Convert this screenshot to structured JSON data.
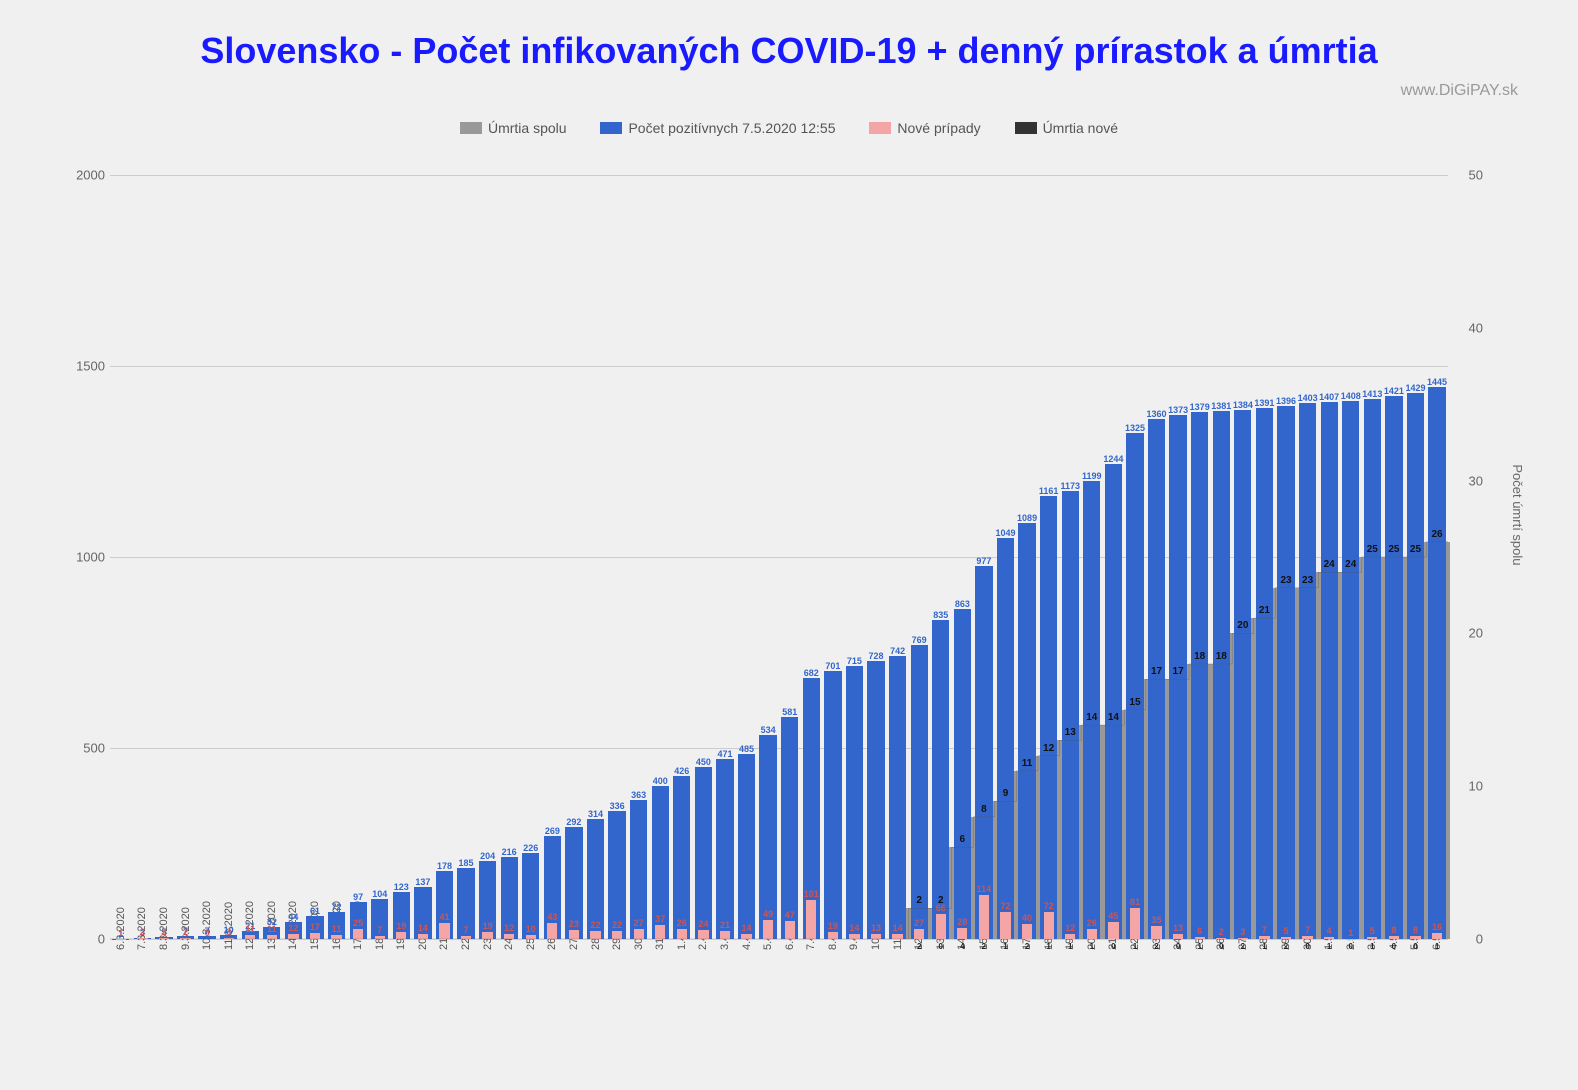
{
  "title": "Slovensko - Počet infikovaných COVID-19 + denný prírastok a úmrtia",
  "subtitle": "www.DiGiPAY.sk",
  "legend": {
    "deaths_total": "Úmrtia spolu",
    "positives": "Počet pozitívnych 7.5.2020 12:55",
    "new_cases": "Nové prípady",
    "deaths_new": "Úmrtia nové"
  },
  "colors": {
    "title": "#1a1aff",
    "positives": "#3366cc",
    "deaths_total": "#999999",
    "new_cases": "#f4a6a6",
    "deaths_new": "#333333",
    "grid": "#cccccc",
    "bg": "#f0f0f0",
    "subtitle": "#999999"
  },
  "y_left": {
    "min": 0,
    "max": 2000,
    "ticks": [
      0,
      500,
      1000,
      1500,
      2000
    ]
  },
  "y_right": {
    "min": 0,
    "max": 50,
    "ticks": [
      0,
      10,
      20,
      30,
      40,
      50
    ],
    "title": "Počet úmrtí spolu"
  },
  "data": [
    {
      "date": "6.3.2020",
      "pos": 1,
      "new": 1,
      "dt": 0,
      "dn": 0
    },
    {
      "date": "7.3.2020",
      "pos": 3,
      "new": 2,
      "dt": 0,
      "dn": 0
    },
    {
      "date": "8.3.2020",
      "pos": 5,
      "new": 2,
      "dt": 0,
      "dn": 0
    },
    {
      "date": "9.3.2020",
      "pos": 7,
      "new": 2,
      "dt": 0,
      "dn": 0
    },
    {
      "date": "10.3.2020",
      "pos": 7,
      "new": 0,
      "dt": 0,
      "dn": 0
    },
    {
      "date": "11.3.2020",
      "pos": 10,
      "new": 3,
      "dt": 0,
      "dn": 0
    },
    {
      "date": "12.3.2020",
      "pos": 21,
      "new": 11,
      "dt": 0,
      "dn": 0
    },
    {
      "date": "13.3.2020",
      "pos": 32,
      "new": 11,
      "dt": 0,
      "dn": 0
    },
    {
      "date": "14.3.2020",
      "pos": 44,
      "new": 12,
      "dt": 0,
      "dn": 0
    },
    {
      "date": "15.3.2020",
      "pos": 61,
      "new": 17,
      "dt": 0,
      "dn": 0
    },
    {
      "date": "16.3.2020",
      "pos": 72,
      "new": 11,
      "dt": 0,
      "dn": 0
    },
    {
      "date": "17.3.2020",
      "pos": 97,
      "new": 25,
      "dt": 0,
      "dn": 0
    },
    {
      "date": "18.3.2020",
      "pos": 104,
      "new": 7,
      "dt": 0,
      "dn": 0
    },
    {
      "date": "19.3.2020",
      "pos": 123,
      "new": 19,
      "dt": 0,
      "dn": 0
    },
    {
      "date": "20.3.2020",
      "pos": 137,
      "new": 14,
      "dt": 0,
      "dn": 0
    },
    {
      "date": "21.3.2020",
      "pos": 178,
      "new": 41,
      "dt": 0,
      "dn": 0
    },
    {
      "date": "22.3.2020",
      "pos": 185,
      "new": 7,
      "dt": 0,
      "dn": 0
    },
    {
      "date": "23.3.2020",
      "pos": 204,
      "new": 19,
      "dt": 0,
      "dn": 0
    },
    {
      "date": "24.3.2020",
      "pos": 216,
      "new": 12,
      "dt": 0,
      "dn": 0
    },
    {
      "date": "25.3.2020",
      "pos": 226,
      "new": 10,
      "dt": 0,
      "dn": 0
    },
    {
      "date": "26.3.2020",
      "pos": 269,
      "new": 43,
      "dt": 0,
      "dn": 0
    },
    {
      "date": "27.3.2020",
      "pos": 292,
      "new": 23,
      "dt": 0,
      "dn": 0
    },
    {
      "date": "28.3.2020",
      "pos": 314,
      "new": 22,
      "dt": 0,
      "dn": 0
    },
    {
      "date": "29.3.2020",
      "pos": 336,
      "new": 22,
      "dt": 0,
      "dn": 0
    },
    {
      "date": "30.3.2020",
      "pos": 363,
      "new": 27,
      "dt": 0,
      "dn": 0
    },
    {
      "date": "31.3.2020",
      "pos": 400,
      "new": 37,
      "dt": 0,
      "dn": 0
    },
    {
      "date": "1.4.2020",
      "pos": 426,
      "new": 26,
      "dt": 0,
      "dn": 0
    },
    {
      "date": "2.4.2020",
      "pos": 450,
      "new": 24,
      "dt": 0,
      "dn": 0
    },
    {
      "date": "3.4.2020",
      "pos": 471,
      "new": 21,
      "dt": 0,
      "dn": 0
    },
    {
      "date": "4.4.2020",
      "pos": 485,
      "new": 14,
      "dt": 0,
      "dn": 0
    },
    {
      "date": "5.4.2020",
      "pos": 534,
      "new": 49,
      "dt": 0,
      "dn": 0
    },
    {
      "date": "6.4.2020",
      "pos": 581,
      "new": 47,
      "dt": 0,
      "dn": 0
    },
    {
      "date": "7.4.2020",
      "pos": 682,
      "new": 101,
      "dt": 0,
      "dn": 0
    },
    {
      "date": "8.4.2020",
      "pos": 701,
      "new": 19,
      "dt": 0,
      "dn": 0
    },
    {
      "date": "9.4.2020",
      "pos": 715,
      "new": 14,
      "dt": 0,
      "dn": 0
    },
    {
      "date": "10.4.2020",
      "pos": 728,
      "new": 13,
      "dt": 0,
      "dn": 0
    },
    {
      "date": "11.4.2020",
      "pos": 742,
      "new": 14,
      "dt": 0,
      "dn": 0
    },
    {
      "date": "12.4.2020",
      "pos": 769,
      "new": 27,
      "dt": 2,
      "dn": 2
    },
    {
      "date": "13.4.2020",
      "pos": 835,
      "new": 66,
      "dt": 2,
      "dn": 0
    },
    {
      "date": "14.4.2020",
      "pos": 863,
      "new": 28,
      "dt": 6,
      "dn": 4
    },
    {
      "date": "15.4.2020",
      "pos": 977,
      "new": 114,
      "dt": 8,
      "dn": 2
    },
    {
      "date": "16.4.2020",
      "pos": 1049,
      "new": 72,
      "dt": 9,
      "dn": 1
    },
    {
      "date": "17.4.2020",
      "pos": 1089,
      "new": 40,
      "dt": 11,
      "dn": 2
    },
    {
      "date": "18.4.2020",
      "pos": 1161,
      "new": 72,
      "dt": 12,
      "dn": 1
    },
    {
      "date": "19.4.2020",
      "pos": 1173,
      "new": 12,
      "dt": 13,
      "dn": 1
    },
    {
      "date": "20.4.2020",
      "pos": 1199,
      "new": 26,
      "dt": 14,
      "dn": 1
    },
    {
      "date": "21.4.2020",
      "pos": 1244,
      "new": 45,
      "dt": 14,
      "dn": 0
    },
    {
      "date": "22.4.2020",
      "pos": 1325,
      "new": 81,
      "dt": 15,
      "dn": 1
    },
    {
      "date": "23.4.2020",
      "pos": 1360,
      "new": 35,
      "dt": 17,
      "dn": 2
    },
    {
      "date": "24.4.2020",
      "pos": 1373,
      "new": 13,
      "dt": 17,
      "dn": 0
    },
    {
      "date": "25.4.2020",
      "pos": 1379,
      "new": 6,
      "dt": 18,
      "dn": 1
    },
    {
      "date": "26.4.2020",
      "pos": 1381,
      "new": 2,
      "dt": 18,
      "dn": 0
    },
    {
      "date": "27.4.2020",
      "pos": 1384,
      "new": 3,
      "dt": 20,
      "dn": 2
    },
    {
      "date": "28.4.2020",
      "pos": 1391,
      "new": 7,
      "dt": 21,
      "dn": 1
    },
    {
      "date": "29.4.2020",
      "pos": 1396,
      "new": 5,
      "dt": 23,
      "dn": 2
    },
    {
      "date": "30.4.2020",
      "pos": 1403,
      "new": 7,
      "dt": 23,
      "dn": 0
    },
    {
      "date": "1.5.2020",
      "pos": 1407,
      "new": 4,
      "dt": 24,
      "dn": 1
    },
    {
      "date": "2.5.2020",
      "pos": 1408,
      "new": 1,
      "dt": 24,
      "dn": 0
    },
    {
      "date": "3.5.2020",
      "pos": 1413,
      "new": 5,
      "dt": 25,
      "dn": 1
    },
    {
      "date": "4.5.2020",
      "pos": 1421,
      "new": 8,
      "dt": 25,
      "dn": 0
    },
    {
      "date": "5.5.2020",
      "pos": 1429,
      "new": 8,
      "dt": 25,
      "dn": 0
    },
    {
      "date": "6.5.2020",
      "pos": 1445,
      "new": 16,
      "dt": 26,
      "dn": 1
    }
  ]
}
